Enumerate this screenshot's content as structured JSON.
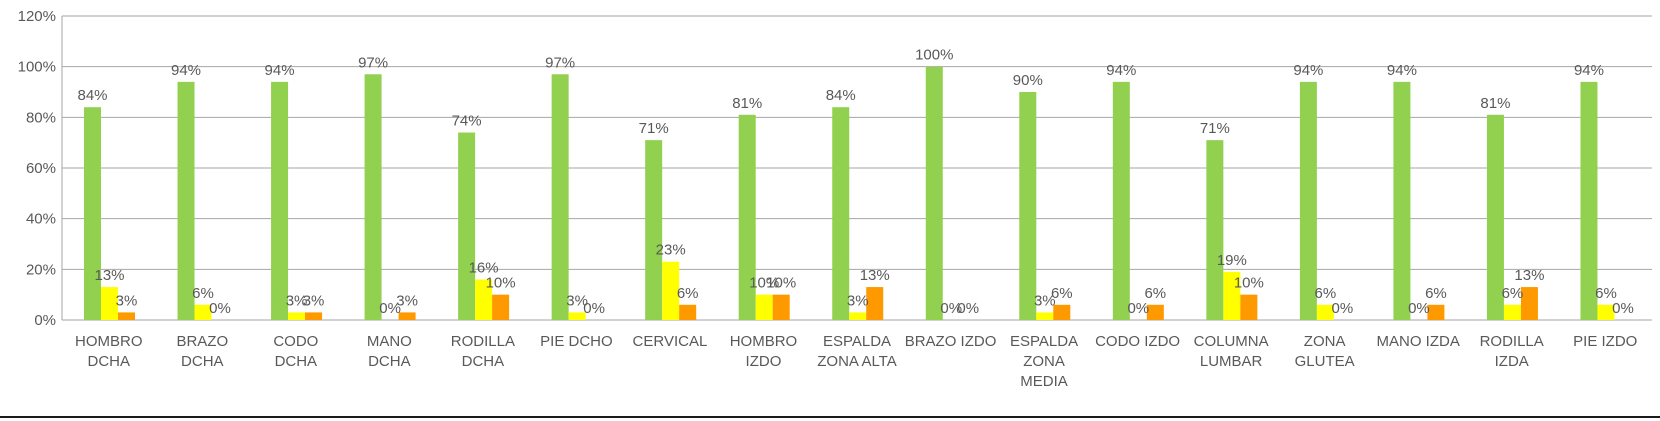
{
  "chart_data": {
    "type": "bar",
    "title": "",
    "xlabel": "",
    "ylabel": "",
    "ylim": [
      0,
      120
    ],
    "y_tick_step": 20,
    "y_tick_format": "percent",
    "grid": true,
    "legend": "none",
    "categories": [
      [
        "HOMBRO",
        "DCHA"
      ],
      [
        "BRAZO",
        "DCHA"
      ],
      [
        "CODO",
        "DCHA"
      ],
      [
        "MANO",
        "DCHA"
      ],
      [
        "RODILLA",
        "DCHA"
      ],
      [
        "PIE DCHO"
      ],
      [
        "CERVICAL"
      ],
      [
        "HOMBRO",
        "IZDO"
      ],
      [
        "ESPALDA",
        "ZONA ALTA"
      ],
      [
        "BRAZO IZDO"
      ],
      [
        "ESPALDA",
        "ZONA",
        "MEDIA"
      ],
      [
        "CODO IZDO"
      ],
      [
        "COLUMNA",
        "LUMBAR"
      ],
      [
        "ZONA",
        "GLUTEA"
      ],
      [
        "MANO IZDA"
      ],
      [
        "RODILLA",
        "IZDA"
      ],
      [
        "PIE IZDO"
      ]
    ],
    "series": [
      {
        "color": "#92d050",
        "values": [
          84,
          94,
          94,
          97,
          74,
          97,
          71,
          81,
          84,
          100,
          90,
          94,
          71,
          94,
          94,
          81,
          94
        ]
      },
      {
        "color": "#ffff00",
        "values": [
          13,
          6,
          3,
          0,
          16,
          3,
          23,
          10,
          3,
          0,
          3,
          0,
          19,
          6,
          0,
          6,
          6
        ]
      },
      {
        "color": "#ff9900",
        "values": [
          3,
          0,
          3,
          3,
          10,
          0,
          6,
          10,
          13,
          0,
          6,
          6,
          10,
          0,
          6,
          13,
          0
        ]
      },
      {
        "color": "#ff0000",
        "values": [
          0,
          0,
          0,
          0,
          0,
          0,
          0,
          0,
          0,
          0,
          0,
          0,
          0,
          0,
          0,
          0,
          0
        ]
      }
    ]
  }
}
